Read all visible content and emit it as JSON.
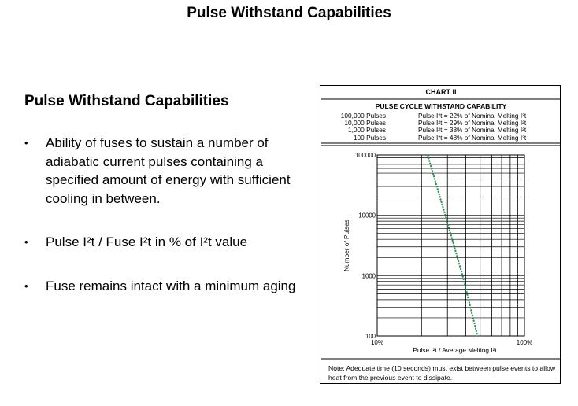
{
  "slide": {
    "title": "Pulse Withstand Capabilities",
    "heading": "Pulse Withstand Capabilities",
    "bullets": [
      "Ability of fuses to sustain a number of adiabatic current pulses containing a specified amount of energy with sufficient cooling in between.",
      "Pulse I²t / Fuse I²t in % of I²t value",
      "Fuse remains intact with a minimum aging"
    ]
  },
  "chart": {
    "chart_label": "CHART II",
    "table_title": "PULSE CYCLE WITHSTAND CAPABILITY",
    "table_rows": [
      {
        "pulses": "100,000 Pulses",
        "condition": "Pulse I²t = 22% of Nominal Melting I²t"
      },
      {
        "pulses": "10,000 Pulses",
        "condition": "Pulse I²t = 29% of Nominal Melting I²t"
      },
      {
        "pulses": "1,000 Pulses",
        "condition": "Pulse I²t = 38% of Nominal Melting I²t"
      },
      {
        "pulses": "100 Pulses",
        "condition": "Pulse I²t = 48% of Nominal Melting I²t"
      }
    ],
    "note": "Note: Adequate time (10 seconds) must exist between pulse events to allow heat from the previous event to dissipate."
  },
  "chart_data": {
    "type": "line",
    "xlabel": "Pulse I²t / Average Melting I²t",
    "ylabel": "Number of Pulses",
    "x_scale": "log",
    "y_scale": "log",
    "xlim": [
      10,
      100
    ],
    "ylim": [
      100,
      100000
    ],
    "x_tick_labels": [
      "10%",
      "100%"
    ],
    "y_tick_labels": [
      "100000",
      "10000",
      "1000",
      "100"
    ],
    "grid": true,
    "line_color": "#2e8b57",
    "line_style": "dashed",
    "series": [
      {
        "x": [
          22,
          29,
          38,
          48
        ],
        "y": [
          100000,
          10000,
          1000,
          100
        ]
      }
    ]
  }
}
